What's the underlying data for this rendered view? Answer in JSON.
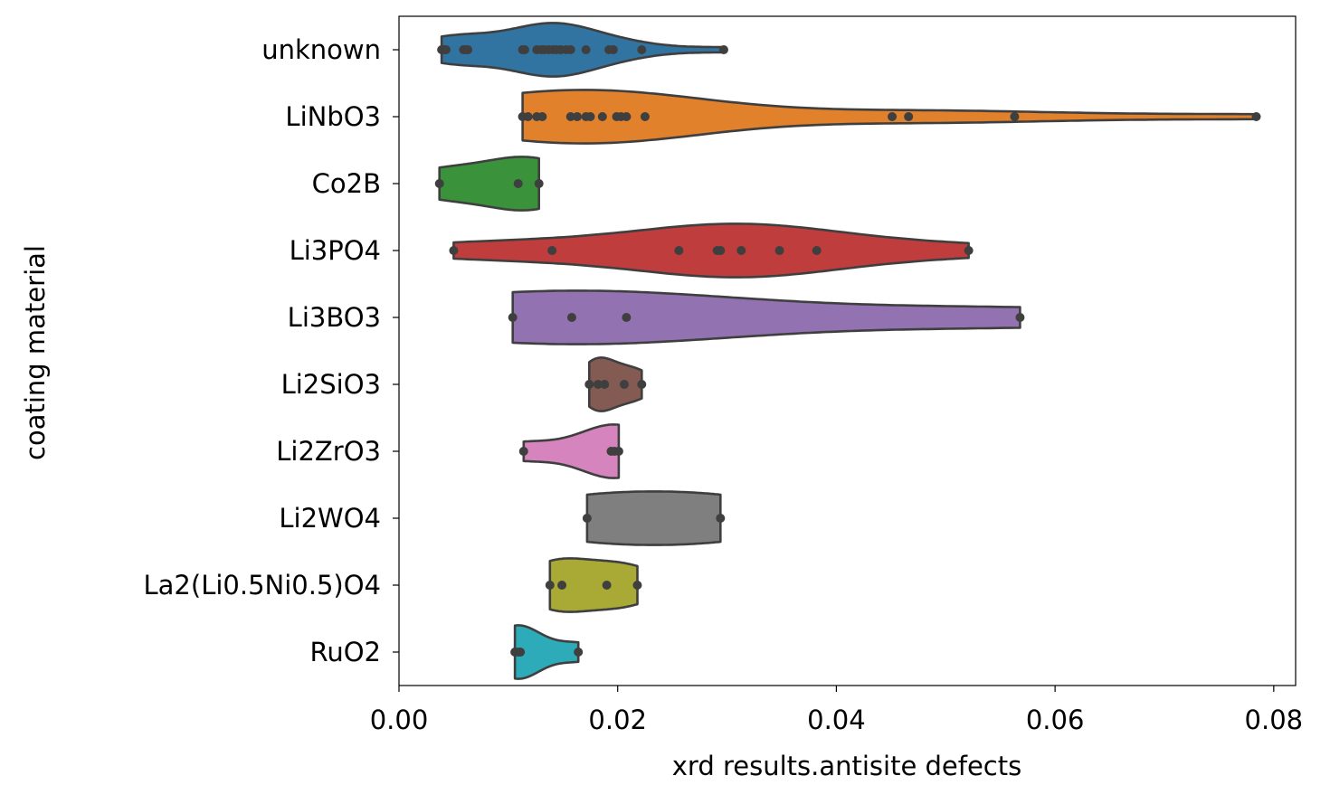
{
  "chart_data": {
    "type": "violin",
    "orientation": "horizontal",
    "xlabel": "xrd results.antisite defects",
    "ylabel": "coating material",
    "xlim": [
      0.0,
      0.082
    ],
    "xticks": [
      "0.00",
      "0.02",
      "0.04",
      "0.06",
      "0.08"
    ],
    "xtick_values": [
      0,
      0.02,
      0.04,
      0.06,
      0.08
    ],
    "grid": false,
    "inner": "points",
    "categories": [
      "unknown",
      "LiNbO3",
      "Co2B",
      "Li3PO4",
      "Li3BO3",
      "Li2SiO3",
      "Li2ZrO3",
      "Li2WO4",
      "La2(Li0.5Ni0.5)O4",
      "RuO2"
    ],
    "colors": [
      "#3274a1",
      "#e1812c",
      "#3a923a",
      "#c03d3e",
      "#9372b2",
      "#845b53",
      "#d684bd",
      "#7f7f7f",
      "#a9aa35",
      "#2eabb8"
    ],
    "series": [
      {
        "values": [
          0.0039,
          0.0041,
          0.0043,
          0.0059,
          0.0061,
          0.0063,
          0.0113,
          0.0115,
          0.0126,
          0.013,
          0.0133,
          0.0137,
          0.0141,
          0.0144,
          0.0148,
          0.0153,
          0.0157,
          0.0171,
          0.0192,
          0.0196,
          0.0222,
          0.0297
        ]
      },
      {
        "values": [
          0.0113,
          0.0118,
          0.0126,
          0.0131,
          0.0157,
          0.0163,
          0.0171,
          0.0175,
          0.0186,
          0.0199,
          0.0203,
          0.0208,
          0.0225,
          0.0451,
          0.0466,
          0.0563,
          0.0784
        ]
      },
      {
        "values": [
          0.0037,
          0.0109,
          0.0128
        ]
      },
      {
        "values": [
          0.005,
          0.014,
          0.0256,
          0.0291,
          0.0294,
          0.0313,
          0.0348,
          0.0382,
          0.0521
        ]
      },
      {
        "values": [
          0.0104,
          0.0158,
          0.0208,
          0.0568
        ]
      },
      {
        "values": [
          0.0174,
          0.0182,
          0.0188,
          0.0206,
          0.0222
        ]
      },
      {
        "values": [
          0.0114,
          0.0194,
          0.0197,
          0.0201
        ]
      },
      {
        "values": [
          0.0172,
          0.0294
        ]
      },
      {
        "values": [
          0.0138,
          0.0149,
          0.019,
          0.0218
        ]
      },
      {
        "values": [
          0.0106,
          0.0109,
          0.0111,
          0.0164
        ]
      }
    ]
  }
}
